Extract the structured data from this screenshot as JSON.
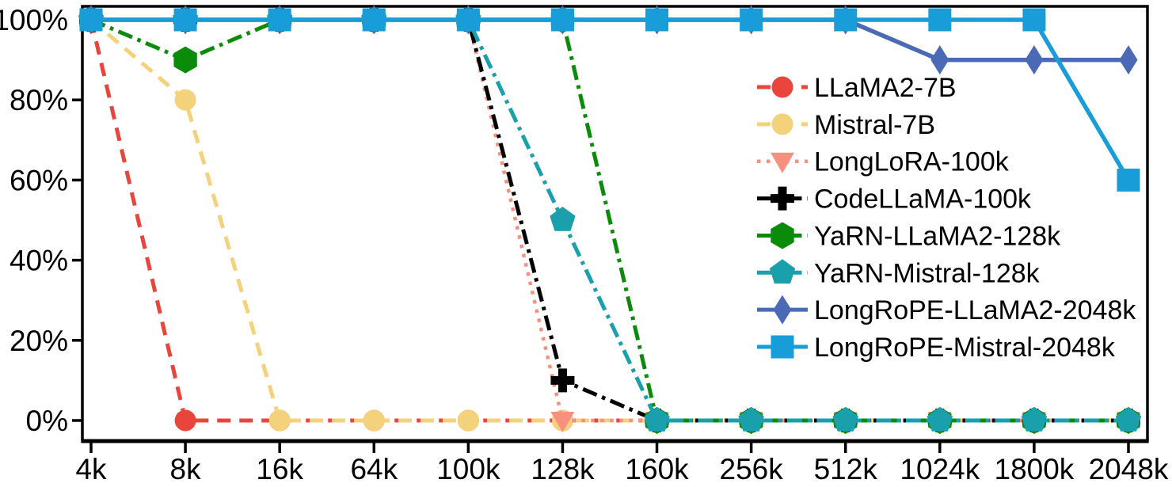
{
  "chart_data": {
    "type": "line",
    "title": "",
    "xlabel": "",
    "ylabel": "",
    "x_categories": [
      "4k",
      "8k",
      "16k",
      "64k",
      "100k",
      "128k",
      "160k",
      "256k",
      "512k",
      "1024k",
      "1800k",
      "2048k"
    ],
    "y_tick_labels": [
      "0%",
      "20%",
      "40%",
      "60%",
      "80%",
      "100%"
    ],
    "y_tick_values": [
      0,
      20,
      40,
      60,
      80,
      100
    ],
    "ylim": [
      0,
      100
    ],
    "grid": false,
    "legend_position": "center-right",
    "axis_color": "#000000",
    "series": [
      {
        "name": "LLaMA2-7B",
        "color": "#e8453c",
        "marker": "circle",
        "line_style": "dashed",
        "values": [
          100,
          0,
          0,
          0,
          0,
          0,
          0,
          0,
          0,
          0,
          0,
          0
        ]
      },
      {
        "name": "Mistral-7B",
        "color": "#f3d27b",
        "marker": "circle",
        "line_style": "dashed",
        "values": [
          100,
          80,
          0,
          0,
          0,
          0,
          0,
          0,
          0,
          0,
          0,
          0
        ]
      },
      {
        "name": "LongLoRA-100k",
        "color": "#f6907f",
        "marker": "triangle-down",
        "line_style": "dotted",
        "values": [
          100,
          100,
          100,
          100,
          100,
          0,
          0,
          0,
          0,
          0,
          0,
          0
        ]
      },
      {
        "name": "CodeLLaMA-100k",
        "color": "#000000",
        "marker": "plus",
        "line_style": "dashdot",
        "values": [
          100,
          100,
          100,
          100,
          100,
          10,
          0,
          0,
          0,
          0,
          0,
          0
        ]
      },
      {
        "name": "YaRN-LLaMA2-128k",
        "color": "#0a8c0a",
        "marker": "hexagon",
        "line_style": "dashdot",
        "values": [
          100,
          90,
          100,
          100,
          100,
          100,
          0,
          0,
          0,
          0,
          0,
          0
        ]
      },
      {
        "name": "YaRN-Mistral-128k",
        "color": "#1aa0ac",
        "marker": "pentagon",
        "line_style": "dashdot",
        "values": [
          100,
          100,
          100,
          100,
          100,
          50,
          0,
          0,
          0,
          0,
          0,
          0
        ]
      },
      {
        "name": "LongRoPE-LLaMA2-2048k",
        "color": "#4a6ab5",
        "marker": "diamond",
        "line_style": "solid",
        "values": [
          100,
          100,
          100,
          100,
          100,
          100,
          100,
          100,
          100,
          90,
          90,
          90
        ]
      },
      {
        "name": "LongRoPE-Mistral-2048k",
        "color": "#199dd9",
        "marker": "square",
        "line_style": "solid",
        "values": [
          100,
          100,
          100,
          100,
          100,
          100,
          100,
          100,
          100,
          100,
          100,
          60
        ]
      }
    ]
  }
}
